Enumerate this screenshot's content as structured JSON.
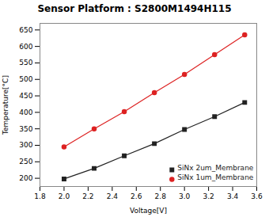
{
  "chart_data": {
    "type": "line",
    "title": "Sensor Platform : S2800M1494H115",
    "xlabel": "Voltage[V]",
    "ylabel": "Temperature[°C]",
    "xlim": [
      1.8,
      3.6
    ],
    "ylim": [
      175,
      670
    ],
    "xticks": [
      1.8,
      {
        "value": 2.0,
        "label": "2.0"
      },
      2.2,
      2.4,
      2.6,
      2.8,
      {
        "value": 3.0,
        "label": "3.0"
      },
      3.2,
      3.4,
      3.6
    ],
    "yticks": [
      200,
      250,
      300,
      350,
      400,
      450,
      500,
      550,
      600,
      650
    ],
    "x": [
      2.0,
      2.25,
      2.5,
      2.75,
      3.0,
      3.25,
      3.5
    ],
    "series": [
      {
        "name": "SiNx 2um_Membrane",
        "color": "#222222",
        "marker": "square",
        "values": [
          198,
          230,
          268,
          305,
          348,
          387,
          430
        ]
      },
      {
        "name": "SiNx 1um_Membrane",
        "color": "#dd2222",
        "marker": "circle",
        "values": [
          295,
          350,
          402,
          460,
          515,
          575,
          635
        ]
      }
    ],
    "legend": "lower right",
    "grid": false
  }
}
